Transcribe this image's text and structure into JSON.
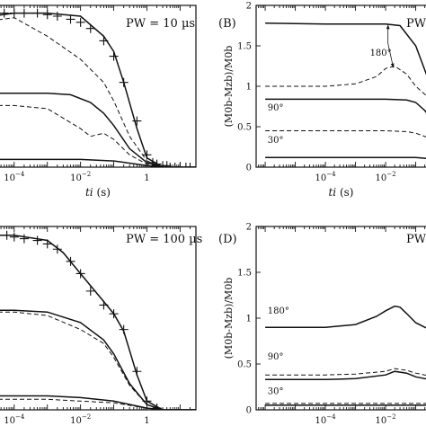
{
  "figure": {
    "panels": [
      {
        "key": "A",
        "label": "",
        "pw_text": "PW = 10 µs",
        "xlabel_var": "ti",
        "xlabel_unit": "(s)",
        "ylabel": "",
        "xticks": [
          {
            "exp": -4
          },
          {
            "exp": -2
          },
          {
            "exp": 0,
            "label": "1"
          }
        ],
        "yticks": [],
        "annotations": []
      },
      {
        "key": "B",
        "label": "(B)",
        "pw_text": "PW",
        "xlabel_var": "ti",
        "xlabel_unit": "(s)",
        "ylabel": "(M0b-Mzb)/M0b",
        "xticks": [
          {
            "exp": -4
          },
          {
            "exp": -2
          }
        ],
        "yticks": [
          {
            "v": 0,
            "label": "0"
          },
          {
            "v": 0.5,
            "label": "0.5"
          },
          {
            "v": 1,
            "label": "1"
          },
          {
            "v": 1.5,
            "label": "1.5"
          },
          {
            "v": 2,
            "label": "2"
          }
        ],
        "annotations": [
          {
            "text": "180°",
            "x": 0.003,
            "y": 1.38
          },
          {
            "text": "90°",
            "x": 1.2e-06,
            "y": 0.7
          },
          {
            "text": "30°",
            "x": 1.2e-06,
            "y": 0.3
          }
        ]
      },
      {
        "key": "C",
        "label": "",
        "pw_text": "PW = 100 µs",
        "xlabel_var": "ti",
        "xlabel_unit": "(s)",
        "ylabel": "",
        "xticks": [
          {
            "exp": -4
          },
          {
            "exp": -2
          },
          {
            "exp": 0,
            "label": "1"
          }
        ],
        "yticks": [],
        "annotations": []
      },
      {
        "key": "D",
        "label": "(D)",
        "pw_text": "PW",
        "xlabel_var": "ti",
        "xlabel_unit": "(s)",
        "ylabel": "(M0b-Mzb)/M0b",
        "xticks": [
          {
            "exp": -4
          },
          {
            "exp": -2
          }
        ],
        "yticks": [
          {
            "v": 0,
            "label": "0"
          },
          {
            "v": 0.5,
            "label": "0.5"
          },
          {
            "v": 1,
            "label": "1"
          },
          {
            "v": 1.5,
            "label": "1.5"
          },
          {
            "v": 2,
            "label": "2"
          }
        ],
        "annotations": [
          {
            "text": "180°",
            "x": 1.2e-06,
            "y": 1.05
          },
          {
            "text": "90°",
            "x": 1.2e-06,
            "y": 0.55
          },
          {
            "text": "30°",
            "x": 1.2e-06,
            "y": 0.17
          }
        ]
      }
    ]
  },
  "chart_data": [
    {
      "type": "line",
      "panel": "A",
      "title": "PW = 10 µs",
      "xlabel": "ti (s)",
      "ylabel": "",
      "xscale": "log",
      "xlim": [
        2e-05,
        30
      ],
      "ylim": [
        0,
        1.05
      ],
      "grid": false,
      "series": [
        {
          "style": "solid",
          "x": [
            2e-05,
            0.0001,
            0.001,
            0.01,
            0.05,
            0.1,
            0.2,
            0.5,
            1,
            3,
            30
          ],
          "y": [
            0.98,
            1.0,
            1.0,
            0.98,
            0.85,
            0.75,
            0.55,
            0.25,
            0.06,
            0.0,
            0.0
          ]
        },
        {
          "style": "dashed",
          "x": [
            2e-05,
            0.0001,
            0.001,
            0.01,
            0.05,
            0.1,
            0.3,
            1,
            3,
            30
          ],
          "y": [
            0.95,
            0.97,
            0.85,
            0.7,
            0.55,
            0.43,
            0.2,
            0.04,
            0.0,
            0.0
          ]
        },
        {
          "style": "solid",
          "x": [
            2e-05,
            0.0001,
            0.001,
            0.005,
            0.02,
            0.05,
            0.1,
            0.3,
            1,
            3,
            30
          ],
          "y": [
            0.48,
            0.48,
            0.48,
            0.47,
            0.42,
            0.35,
            0.27,
            0.12,
            0.03,
            0.0,
            0.0
          ]
        },
        {
          "style": "dashed",
          "x": [
            2e-05,
            0.0001,
            0.001,
            0.01,
            0.02,
            0.05,
            0.1,
            0.3,
            1,
            3,
            30
          ],
          "y": [
            0.4,
            0.4,
            0.38,
            0.25,
            0.2,
            0.22,
            0.18,
            0.08,
            0.02,
            0.0,
            0.0
          ]
        },
        {
          "style": "solid",
          "x": [
            2e-05,
            0.0001,
            0.001,
            0.01,
            0.1,
            1,
            3,
            30
          ],
          "y": [
            0.05,
            0.05,
            0.05,
            0.05,
            0.04,
            0.01,
            0.0,
            0.0
          ]
        }
      ],
      "markers_plus": {
        "x": [
          3e-05,
          5e-05,
          0.0001,
          0.0002,
          0.0005,
          0.001,
          0.002,
          0.005,
          0.01,
          0.02,
          0.05,
          0.1,
          0.2,
          0.5,
          1,
          1.5,
          2,
          3,
          4,
          5,
          7,
          10,
          15,
          20
        ],
        "y": [
          0.99,
          1.0,
          1.0,
          1.0,
          1.0,
          0.99,
          0.98,
          0.96,
          0.94,
          0.9,
          0.82,
          0.72,
          0.55,
          0.3,
          0.08,
          0.03,
          0.02,
          0.01,
          0.01,
          0.0,
          0.0,
          0.0,
          0.0,
          0.0
        ]
      },
      "markers_circle": {
        "x": [
          2e-05,
          2e-05
        ],
        "y": [
          0.62,
          0.18
        ]
      }
    },
    {
      "type": "line",
      "panel": "B",
      "title": "",
      "xlabel": "ti (s)",
      "ylabel": "(M0b-Mzb)/M0b",
      "xscale": "log",
      "xlim": [
        5e-07,
        0.5
      ],
      "ylim": [
        0,
        2
      ],
      "grid": false,
      "series": [
        {
          "name": "180°",
          "style": "solid",
          "x": [
            1e-06,
            0.0001,
            0.001,
            0.01,
            0.03,
            0.1,
            0.2,
            0.5
          ],
          "y": [
            1.78,
            1.77,
            1.77,
            1.77,
            1.75,
            1.5,
            1.2,
            0.8
          ]
        },
        {
          "name": "180°",
          "style": "dashed",
          "x": [
            1e-06,
            0.0001,
            0.001,
            0.005,
            0.01,
            0.02,
            0.05,
            0.1,
            0.2,
            0.5
          ],
          "y": [
            1.0,
            1.0,
            1.03,
            1.12,
            1.22,
            1.25,
            1.15,
            1.0,
            0.9,
            0.8
          ]
        },
        {
          "name": "90°",
          "style": "solid",
          "x": [
            1e-06,
            0.0001,
            0.001,
            0.01,
            0.05,
            0.1,
            0.2,
            0.5
          ],
          "y": [
            0.84,
            0.84,
            0.84,
            0.84,
            0.83,
            0.8,
            0.7,
            0.5
          ]
        },
        {
          "name": "30°",
          "style": "dashed",
          "x": [
            1e-06,
            0.0001,
            0.001,
            0.01,
            0.05,
            0.1,
            0.2,
            0.5
          ],
          "y": [
            0.45,
            0.45,
            0.45,
            0.45,
            0.44,
            0.42,
            0.38,
            0.3
          ]
        },
        {
          "name": "30°",
          "style": "solid",
          "x": [
            1e-06,
            0.0001,
            0.001,
            0.01,
            0.1,
            0.2,
            0.5
          ],
          "y": [
            0.12,
            0.12,
            0.12,
            0.12,
            0.12,
            0.11,
            0.1
          ]
        }
      ]
    },
    {
      "type": "line",
      "panel": "C",
      "title": "PW = 100 µs",
      "xlabel": "ti (s)",
      "ylabel": "",
      "xscale": "log",
      "xlim": [
        2e-05,
        30
      ],
      "ylim": [
        0,
        1.05
      ],
      "grid": false,
      "series": [
        {
          "style": "solid",
          "x": [
            2e-05,
            0.0001,
            0.001,
            0.003,
            0.01,
            0.05,
            0.1,
            0.2,
            0.5,
            1,
            3,
            30
          ],
          "y": [
            1.0,
            1.0,
            0.97,
            0.9,
            0.78,
            0.62,
            0.55,
            0.45,
            0.2,
            0.05,
            0.0,
            0.0
          ]
        },
        {
          "style": "solid",
          "x": [
            2e-05,
            0.0001,
            0.001,
            0.01,
            0.05,
            0.1,
            0.3,
            1,
            3,
            30
          ],
          "y": [
            0.57,
            0.57,
            0.56,
            0.5,
            0.4,
            0.32,
            0.15,
            0.03,
            0.0,
            0.0
          ]
        },
        {
          "style": "dashed",
          "x": [
            2e-05,
            0.0001,
            0.001,
            0.01,
            0.05,
            0.1,
            0.3,
            1,
            3,
            30
          ],
          "y": [
            0.56,
            0.56,
            0.54,
            0.46,
            0.38,
            0.3,
            0.14,
            0.03,
            0.0,
            0.0
          ]
        },
        {
          "style": "solid",
          "x": [
            2e-05,
            0.0001,
            0.001,
            0.01,
            0.1,
            1,
            3,
            30
          ],
          "y": [
            0.08,
            0.08,
            0.08,
            0.07,
            0.05,
            0.01,
            0.0,
            0.0
          ]
        },
        {
          "style": "dashed",
          "x": [
            2e-05,
            0.0001,
            0.001,
            0.01,
            0.1,
            1,
            3,
            30
          ],
          "y": [
            0.06,
            0.06,
            0.06,
            0.05,
            0.04,
            0.01,
            0.0,
            0.0
          ]
        }
      ],
      "markers_plus": {
        "x": [
          3e-05,
          6e-05,
          0.0001,
          0.0002,
          0.0005,
          0.001,
          0.002,
          0.005,
          0.01,
          0.02,
          0.05,
          0.1,
          0.2,
          0.5,
          1,
          2
        ],
        "y": [
          1.0,
          1.0,
          0.99,
          0.98,
          0.97,
          0.95,
          0.92,
          0.85,
          0.78,
          0.68,
          0.6,
          0.55,
          0.46,
          0.22,
          0.05,
          0.01
        ]
      },
      "markers_circle": {
        "x": [
          2e-05
        ],
        "y": [
          0.93
        ]
      }
    },
    {
      "type": "line",
      "panel": "D",
      "title": "",
      "xlabel": "ti (s)",
      "ylabel": "(M0b-Mzb)/M0b",
      "xscale": "log",
      "xlim": [
        5e-07,
        0.5
      ],
      "ylim": [
        0,
        2
      ],
      "grid": false,
      "series": [
        {
          "name": "180°",
          "style": "solid",
          "x": [
            1e-06,
            0.0001,
            0.001,
            0.005,
            0.01,
            0.02,
            0.03,
            0.05,
            0.1,
            0.2,
            0.5
          ],
          "y": [
            0.9,
            0.9,
            0.93,
            1.02,
            1.08,
            1.13,
            1.12,
            1.05,
            0.95,
            0.9,
            0.85
          ]
        },
        {
          "name": "90°",
          "style": "dashed",
          "x": [
            1e-06,
            0.0001,
            0.001,
            0.01,
            0.02,
            0.05,
            0.1,
            0.2,
            0.5
          ],
          "y": [
            0.38,
            0.38,
            0.39,
            0.42,
            0.45,
            0.43,
            0.4,
            0.38,
            0.36
          ]
        },
        {
          "name": "90°",
          "style": "solid",
          "x": [
            1e-06,
            0.0001,
            0.001,
            0.01,
            0.02,
            0.05,
            0.1,
            0.2,
            0.5
          ],
          "y": [
            0.33,
            0.33,
            0.34,
            0.38,
            0.42,
            0.4,
            0.36,
            0.34,
            0.32
          ]
        },
        {
          "name": "30°",
          "style": "dashed",
          "x": [
            1e-06,
            0.0001,
            0.001,
            0.01,
            0.1,
            0.5
          ],
          "y": [
            0.07,
            0.07,
            0.07,
            0.07,
            0.07,
            0.07
          ]
        },
        {
          "name": "30°",
          "style": "solid",
          "x": [
            1e-06,
            0.0001,
            0.001,
            0.01,
            0.1,
            0.5
          ],
          "y": [
            0.05,
            0.05,
            0.05,
            0.05,
            0.05,
            0.05
          ]
        }
      ]
    }
  ]
}
